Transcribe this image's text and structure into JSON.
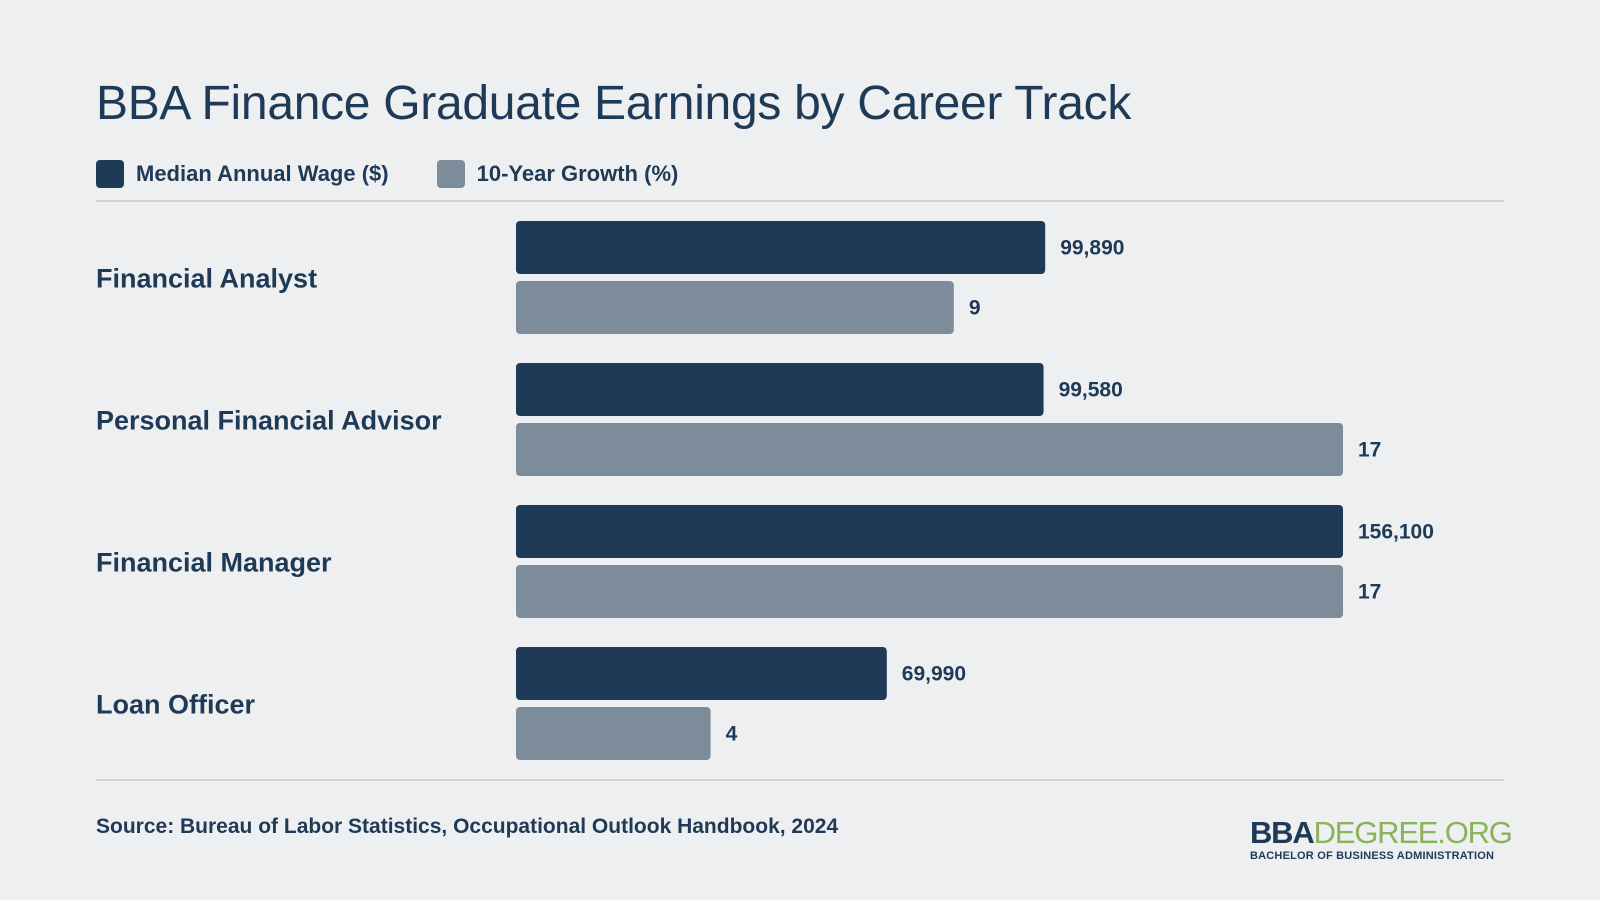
{
  "title": "BBA Finance Graduate Earnings by Career Track",
  "legend": [
    {
      "label": "Median Annual Wage ($)",
      "color": "#1e3a56"
    },
    {
      "label": "10-Year Growth (%)",
      "color": "#7d8c9b"
    }
  ],
  "source": "Source: Bureau of Labor Statistics, Occupational Outlook Handbook, 2024",
  "logo": {
    "main_bold": "BBA",
    "main_light": "DEGREE.ORG",
    "tagline": "BACHELOR OF BUSINESS ADMINISTRATION"
  },
  "chart_data": {
    "type": "bar",
    "orientation": "horizontal",
    "title": "BBA Finance Graduate Earnings by Career Track",
    "categories": [
      "Financial Analyst",
      "Personal Financial Advisor",
      "Financial Manager",
      "Loan Officer"
    ],
    "series": [
      {
        "name": "Median Annual Wage ($)",
        "values": [
          99890,
          99580,
          156100,
          69990
        ],
        "labels": [
          "99,890",
          "99,580",
          "156,100",
          "69,990"
        ],
        "color": "#1e3a56"
      },
      {
        "name": "10-Year Growth (%)",
        "values": [
          9,
          17,
          17,
          4
        ],
        "labels": [
          "9",
          "17",
          "17",
          "4"
        ],
        "color": "#7d8c9b"
      }
    ],
    "grid": false,
    "legend_position": "top-left"
  }
}
